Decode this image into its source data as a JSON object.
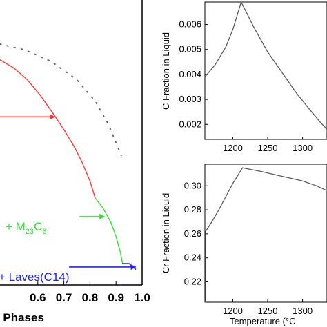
{
  "colors": {
    "red": "#ff3b3b",
    "green": "#35e035",
    "blue": "#2020ff",
    "dotted": "#666666",
    "line": "#5a5a5a"
  },
  "chart_data": [
    {
      "type": "line",
      "title": "",
      "xlabel": "f Phases",
      "ylabel": "",
      "xlim": [
        0.455,
        1.0
      ],
      "ylim": [
        0,
        1
      ],
      "x_ticks": [
        "0.6",
        "0.7",
        "0.8",
        "0.9",
        "1.0"
      ],
      "grid": false,
      "series": [
        {
          "color": "red",
          "x": [
            0.455,
            0.51,
            0.56,
            0.61,
            0.66,
            0.7,
            0.74,
            0.77,
            0.8,
            0.82
          ],
          "y": [
            0.79,
            0.76,
            0.72,
            0.665,
            0.6,
            0.545,
            0.485,
            0.43,
            0.365,
            0.305
          ]
        },
        {
          "color": "green",
          "x": [
            0.82,
            0.85,
            0.88,
            0.9,
            0.915,
            0.925
          ],
          "y": [
            0.305,
            0.27,
            0.22,
            0.17,
            0.12,
            0.075
          ]
        },
        {
          "color": "blue",
          "x": [
            0.925,
            0.95,
            0.975
          ],
          "y": [
            0.075,
            0.075,
            0.055
          ]
        },
        {
          "style": "dotted",
          "x": [
            0.455,
            0.55,
            0.65,
            0.75,
            0.82,
            0.87,
            0.92
          ],
          "y": [
            0.845,
            0.825,
            0.785,
            0.72,
            0.645,
            0.565,
            0.455
          ]
        }
      ],
      "annotations": [
        {
          "text_parts": [
            "+ M",
            "23",
            "C",
            "6"
          ],
          "color": "green",
          "x": 0.56,
          "y": 0.235
        },
        {
          "text_parts": [
            "+ Laves(C14)"
          ],
          "color": "blue",
          "x": 0.47,
          "y": 0.06
        }
      ],
      "arrows": [
        {
          "color": "red",
          "x0": 0.455,
          "x1": 0.665,
          "y": 0.59
        },
        {
          "color": "green",
          "x0": 0.76,
          "x1": 0.855,
          "y": 0.24
        },
        {
          "color": "blue",
          "x0": 0.72,
          "x1": 0.975,
          "y": 0.063
        }
      ]
    },
    {
      "type": "line",
      "title": "",
      "xlabel": "",
      "ylabel": "C Fraction in Liquid",
      "xlim": [
        1160,
        1335
      ],
      "ylim": [
        0.0014,
        0.0069
      ],
      "x_ticks": [
        1200,
        1250,
        1300
      ],
      "x_tick_labels": [
        "1200",
        "1250",
        "1300"
      ],
      "y_ticks": [
        0.002,
        0.003,
        0.004,
        0.005,
        0.006
      ],
      "y_tick_labels": [
        "0.002",
        "0.003",
        "0.004",
        "0.005",
        "0.006"
      ],
      "grid": false,
      "series": [
        {
          "x": [
            1160,
            1175,
            1190,
            1200,
            1212,
            1230,
            1250,
            1270,
            1290,
            1310,
            1325,
            1335
          ],
          "y": [
            0.0039,
            0.0044,
            0.0051,
            0.0058,
            0.0069,
            0.0059,
            0.0049,
            0.0041,
            0.0033,
            0.0026,
            0.0021,
            0.0018
          ]
        }
      ]
    },
    {
      "type": "line",
      "title": "",
      "xlabel": "Temperature (°C",
      "ylabel": "Cr Fraction in Liquid",
      "xlim": [
        1160,
        1335
      ],
      "ylim": [
        0.203,
        0.318
      ],
      "x_ticks": [
        1200,
        1250,
        1300
      ],
      "x_tick_labels": [
        "1200",
        "1250",
        "1300"
      ],
      "y_ticks": [
        0.22,
        0.24,
        0.26,
        0.28,
        0.3
      ],
      "y_tick_labels": [
        "0.22",
        "0.24",
        "0.26",
        "0.28",
        "0.30"
      ],
      "grid": false,
      "series": [
        {
          "x": [
            1160,
            1161,
            1161,
            1170,
            1180,
            1190,
            1200,
            1214,
            1240,
            1270,
            1300,
            1320,
            1335
          ],
          "y": [
            0.203,
            0.203,
            0.262,
            0.27,
            0.28,
            0.291,
            0.302,
            0.315,
            0.312,
            0.308,
            0.304,
            0.3,
            0.296
          ]
        }
      ]
    }
  ]
}
